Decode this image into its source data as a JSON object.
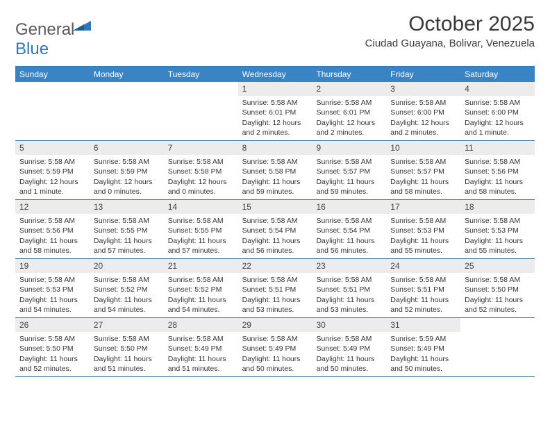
{
  "colors": {
    "header_bg": "#3a84c4",
    "border": "#3a78a8",
    "daynum_bg": "#ececec",
    "text": "#333333",
    "logo_gray": "#5a5a5a",
    "logo_blue": "#2f78b7"
  },
  "fonts": {
    "title_size": 30,
    "subtitle_size": 15,
    "weekday_size": 12,
    "daynum_size": 12,
    "body_size": 10.5,
    "family": "Arial"
  },
  "logo": {
    "part1": "General",
    "part2": "Blue"
  },
  "title": "October 2025",
  "subtitle": "Ciudad Guayana, Bolivar, Venezuela",
  "weekdays": [
    "Sunday",
    "Monday",
    "Tuesday",
    "Wednesday",
    "Thursday",
    "Friday",
    "Saturday"
  ],
  "weeks": [
    [
      {
        "n": "",
        "sr": "",
        "ss": "",
        "dl": ""
      },
      {
        "n": "",
        "sr": "",
        "ss": "",
        "dl": ""
      },
      {
        "n": "",
        "sr": "",
        "ss": "",
        "dl": ""
      },
      {
        "n": "1",
        "sr": "5:58 AM",
        "ss": "6:01 PM",
        "dl": "12 hours and 2 minutes."
      },
      {
        "n": "2",
        "sr": "5:58 AM",
        "ss": "6:01 PM",
        "dl": "12 hours and 2 minutes."
      },
      {
        "n": "3",
        "sr": "5:58 AM",
        "ss": "6:00 PM",
        "dl": "12 hours and 2 minutes."
      },
      {
        "n": "4",
        "sr": "5:58 AM",
        "ss": "6:00 PM",
        "dl": "12 hours and 1 minute."
      }
    ],
    [
      {
        "n": "5",
        "sr": "5:58 AM",
        "ss": "5:59 PM",
        "dl": "12 hours and 1 minute."
      },
      {
        "n": "6",
        "sr": "5:58 AM",
        "ss": "5:59 PM",
        "dl": "12 hours and 0 minutes."
      },
      {
        "n": "7",
        "sr": "5:58 AM",
        "ss": "5:58 PM",
        "dl": "12 hours and 0 minutes."
      },
      {
        "n": "8",
        "sr": "5:58 AM",
        "ss": "5:58 PM",
        "dl": "11 hours and 59 minutes."
      },
      {
        "n": "9",
        "sr": "5:58 AM",
        "ss": "5:57 PM",
        "dl": "11 hours and 59 minutes."
      },
      {
        "n": "10",
        "sr": "5:58 AM",
        "ss": "5:57 PM",
        "dl": "11 hours and 58 minutes."
      },
      {
        "n": "11",
        "sr": "5:58 AM",
        "ss": "5:56 PM",
        "dl": "11 hours and 58 minutes."
      }
    ],
    [
      {
        "n": "12",
        "sr": "5:58 AM",
        "ss": "5:56 PM",
        "dl": "11 hours and 58 minutes."
      },
      {
        "n": "13",
        "sr": "5:58 AM",
        "ss": "5:55 PM",
        "dl": "11 hours and 57 minutes."
      },
      {
        "n": "14",
        "sr": "5:58 AM",
        "ss": "5:55 PM",
        "dl": "11 hours and 57 minutes."
      },
      {
        "n": "15",
        "sr": "5:58 AM",
        "ss": "5:54 PM",
        "dl": "11 hours and 56 minutes."
      },
      {
        "n": "16",
        "sr": "5:58 AM",
        "ss": "5:54 PM",
        "dl": "11 hours and 56 minutes."
      },
      {
        "n": "17",
        "sr": "5:58 AM",
        "ss": "5:53 PM",
        "dl": "11 hours and 55 minutes."
      },
      {
        "n": "18",
        "sr": "5:58 AM",
        "ss": "5:53 PM",
        "dl": "11 hours and 55 minutes."
      }
    ],
    [
      {
        "n": "19",
        "sr": "5:58 AM",
        "ss": "5:53 PM",
        "dl": "11 hours and 54 minutes."
      },
      {
        "n": "20",
        "sr": "5:58 AM",
        "ss": "5:52 PM",
        "dl": "11 hours and 54 minutes."
      },
      {
        "n": "21",
        "sr": "5:58 AM",
        "ss": "5:52 PM",
        "dl": "11 hours and 54 minutes."
      },
      {
        "n": "22",
        "sr": "5:58 AM",
        "ss": "5:51 PM",
        "dl": "11 hours and 53 minutes."
      },
      {
        "n": "23",
        "sr": "5:58 AM",
        "ss": "5:51 PM",
        "dl": "11 hours and 53 minutes."
      },
      {
        "n": "24",
        "sr": "5:58 AM",
        "ss": "5:51 PM",
        "dl": "11 hours and 52 minutes."
      },
      {
        "n": "25",
        "sr": "5:58 AM",
        "ss": "5:50 PM",
        "dl": "11 hours and 52 minutes."
      }
    ],
    [
      {
        "n": "26",
        "sr": "5:58 AM",
        "ss": "5:50 PM",
        "dl": "11 hours and 52 minutes."
      },
      {
        "n": "27",
        "sr": "5:58 AM",
        "ss": "5:50 PM",
        "dl": "11 hours and 51 minutes."
      },
      {
        "n": "28",
        "sr": "5:58 AM",
        "ss": "5:49 PM",
        "dl": "11 hours and 51 minutes."
      },
      {
        "n": "29",
        "sr": "5:58 AM",
        "ss": "5:49 PM",
        "dl": "11 hours and 50 minutes."
      },
      {
        "n": "30",
        "sr": "5:58 AM",
        "ss": "5:49 PM",
        "dl": "11 hours and 50 minutes."
      },
      {
        "n": "31",
        "sr": "5:59 AM",
        "ss": "5:49 PM",
        "dl": "11 hours and 50 minutes."
      },
      {
        "n": "",
        "sr": "",
        "ss": "",
        "dl": ""
      }
    ]
  ],
  "labels": {
    "sunrise": "Sunrise:",
    "sunset": "Sunset:",
    "daylight": "Daylight:"
  }
}
